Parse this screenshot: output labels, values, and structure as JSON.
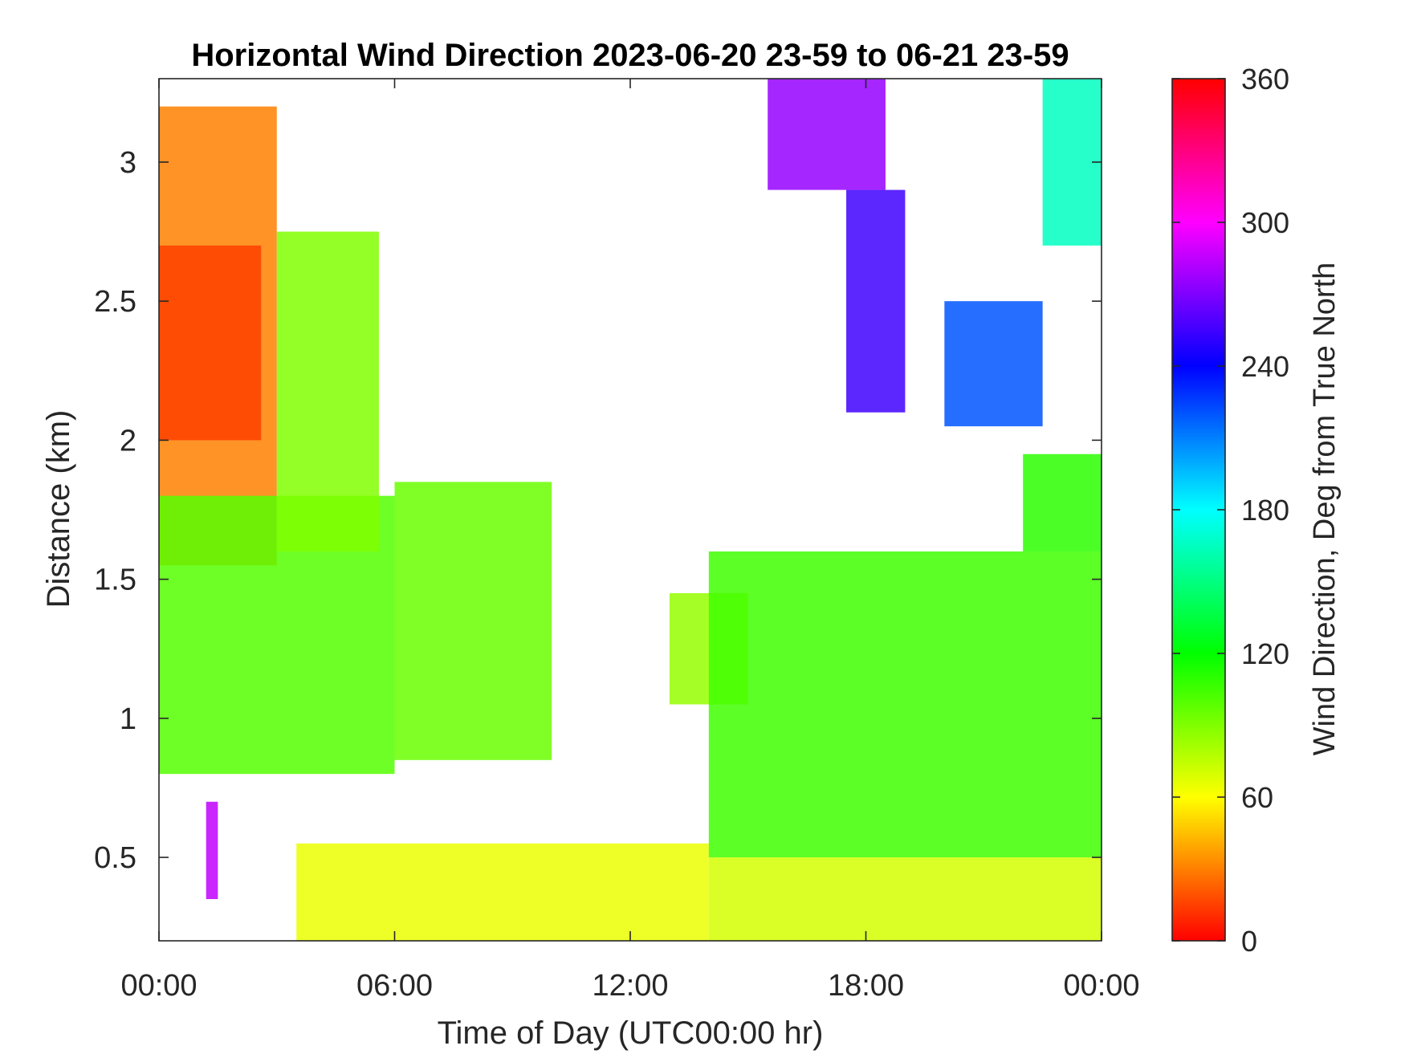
{
  "chart_data": {
    "type": "heatmap",
    "title": "Horizontal Wind Direction 2023-06-20 23-59 to 06-21 23-59",
    "xlabel": "Time of Day (UTC00:00 hr)",
    "ylabel": "Distance (km)",
    "x_unit": "hours",
    "xlim": [
      0,
      24
    ],
    "ylim": [
      0.2,
      3.3
    ],
    "x_ticks": [
      {
        "value": 0,
        "label": "00:00"
      },
      {
        "value": 6,
        "label": "06:00"
      },
      {
        "value": 12,
        "label": "12:00"
      },
      {
        "value": 18,
        "label": "18:00"
      },
      {
        "value": 24,
        "label": "00:00"
      }
    ],
    "y_ticks": [
      {
        "value": 0.5,
        "label": "0.5"
      },
      {
        "value": 1,
        "label": "1"
      },
      {
        "value": 1.5,
        "label": "1.5"
      },
      {
        "value": 2,
        "label": "2"
      },
      {
        "value": 2.5,
        "label": "2.5"
      },
      {
        "value": 3,
        "label": "3"
      }
    ],
    "colorbar": {
      "label": "Wind Direction, Deg from True North",
      "clim": [
        0,
        360
      ],
      "ticks": [
        {
          "value": 0,
          "label": "0"
        },
        {
          "value": 60,
          "label": "60"
        },
        {
          "value": 120,
          "label": "120"
        },
        {
          "value": 180,
          "label": "180"
        },
        {
          "value": 240,
          "label": "240"
        },
        {
          "value": 300,
          "label": "300"
        },
        {
          "value": 360,
          "label": "360"
        }
      ],
      "colormap": "hsv"
    },
    "grid": false,
    "regions": [
      {
        "x": [
          0,
          3.0
        ],
        "y_from": 1.55,
        "y_to": 3.2,
        "direction_deg": 30
      },
      {
        "x": [
          0,
          2.6
        ],
        "y_from": 2.0,
        "y_to": 2.7,
        "direction_deg": 15
      },
      {
        "x": [
          0,
          6.0
        ],
        "y_from": 0.8,
        "y_to": 1.8,
        "direction_deg": 100
      },
      {
        "x": [
          3.0,
          5.6
        ],
        "y_from": 1.6,
        "y_to": 2.75,
        "direction_deg": 90
      },
      {
        "x": [
          6.0,
          10.0
        ],
        "y_from": 0.85,
        "y_to": 1.85,
        "direction_deg": 95
      },
      {
        "x": [
          3.5,
          14.0
        ],
        "y_from": 0.2,
        "y_to": 0.55,
        "direction_deg": 65
      },
      {
        "x": [
          13.0,
          15.0
        ],
        "y_from": 1.05,
        "y_to": 1.45,
        "direction_deg": 85
      },
      {
        "x": [
          14.0,
          24.0
        ],
        "y_from": 0.2,
        "y_to": 0.5,
        "direction_deg": 70
      },
      {
        "x": [
          14.0,
          24.0
        ],
        "y_from": 0.5,
        "y_to": 1.6,
        "direction_deg": 105
      },
      {
        "x": [
          22.0,
          24.0
        ],
        "y_from": 1.6,
        "y_to": 1.95,
        "direction_deg": 110
      },
      {
        "x": [
          15.5,
          18.5
        ],
        "y_from": 2.9,
        "y_to": 3.3,
        "direction_deg": 275
      },
      {
        "x": [
          17.5,
          19.0
        ],
        "y_from": 2.1,
        "y_to": 2.9,
        "direction_deg": 255
      },
      {
        "x": [
          20.0,
          22.5
        ],
        "y_from": 2.05,
        "y_to": 2.5,
        "direction_deg": 220
      },
      {
        "x": [
          22.5,
          24.0
        ],
        "y_from": 2.7,
        "y_to": 3.3,
        "direction_deg": 165
      },
      {
        "x": [
          1.2,
          1.5
        ],
        "y_from": 0.35,
        "y_to": 0.7,
        "direction_deg": 285
      }
    ]
  }
}
